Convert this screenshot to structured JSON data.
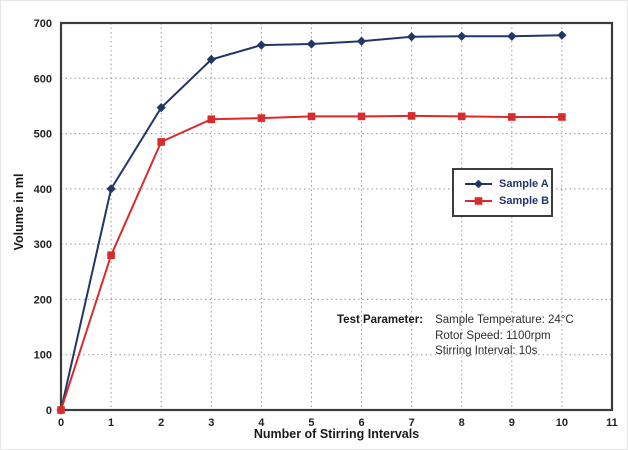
{
  "chart_data": {
    "type": "line",
    "title": "",
    "xlabel": "Number of Stirring Intervals",
    "ylabel": "Volume in ml",
    "x": [
      0,
      1,
      2,
      3,
      4,
      5,
      6,
      7,
      8,
      9,
      10
    ],
    "series": [
      {
        "name": "Sample A",
        "color": "#223668",
        "marker": "diamond",
        "values": [
          0,
          400,
          547,
          634,
          660,
          662,
          667,
          675,
          676,
          676,
          678
        ]
      },
      {
        "name": "Sample B",
        "color": "#d92b2b",
        "marker": "square",
        "values": [
          0,
          280,
          485,
          526,
          528,
          531,
          531,
          532,
          531,
          530,
          530
        ]
      }
    ],
    "xlim": [
      0,
      11
    ],
    "ylim": [
      0,
      700
    ],
    "xticks": [
      0,
      1,
      2,
      3,
      4,
      5,
      6,
      7,
      8,
      9,
      10,
      11
    ],
    "yticks": [
      0,
      100,
      200,
      300,
      400,
      500,
      600,
      700
    ],
    "grid": true,
    "grid_color": "#999999",
    "axis_color": "#3c3c3c",
    "tick_color": "#222222",
    "legend_position": "middle-right"
  },
  "annotation": {
    "label": "Test Parameter:",
    "lines": [
      "Sample Temperature: 24°C",
      "Rotor Speed: 1100rpm",
      "Stirring Interval: 10s"
    ]
  }
}
